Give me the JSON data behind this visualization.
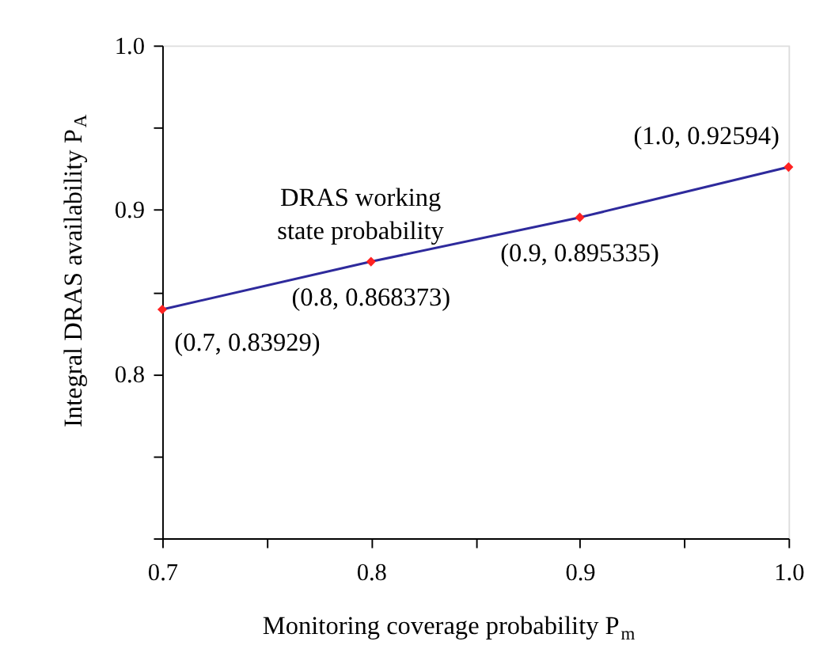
{
  "chart_data": {
    "type": "line",
    "xlabel": "Monitoring coverage probability P$_{m}$",
    "ylabel": "Integral DRAS availability P$_{A}$",
    "x": [
      0.7,
      0.8,
      0.9,
      1.0
    ],
    "series": [
      {
        "name": "DRAS working state probability",
        "color": "#2e2a9c",
        "values": [
          0.83929,
          0.868373,
          0.895335,
          0.92594
        ]
      }
    ],
    "xlim": [
      0.7,
      1.0
    ],
    "xticks": [
      0.7,
      {
        "value": 0.75,
        "label": null
      },
      0.8,
      {
        "value": 0.85,
        "label": null
      },
      0.9,
      {
        "value": 0.95,
        "label": null
      },
      {
        "value": 1.0,
        "label": "1.0"
      }
    ],
    "ylim": [
      0.7,
      1.0
    ],
    "yticks": [
      {
        "value": 0.7,
        "label": null
      },
      {
        "value": 0.75,
        "label": null
      },
      0.8,
      {
        "value": 0.85,
        "label": null
      },
      0.9,
      {
        "value": 0.95,
        "label": null
      },
      {
        "value": 1.0,
        "label": "1.0"
      }
    ],
    "annotations": [
      {
        "text": "(0.7, 0.83929)",
        "x": 0.7,
        "y": 0.83929
      },
      {
        "text": "(0.8, 0.868373)",
        "x": 0.8,
        "y": 0.868373
      },
      {
        "text": "(0.9, 0.895335)",
        "x": 0.9,
        "y": 0.895335
      },
      {
        "text": "(1.0, 0.92594)",
        "x": 1.0,
        "y": 0.92594
      }
    ],
    "marker": "diamond",
    "line_style": "solid",
    "grid": false,
    "legend": false
  }
}
